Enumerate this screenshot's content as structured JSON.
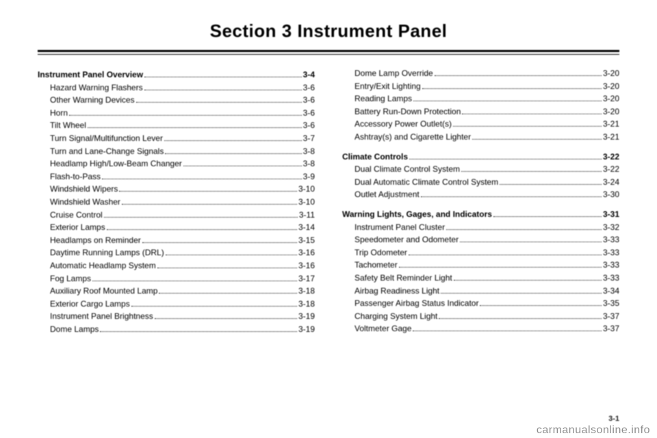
{
  "title": "Section 3    Instrument Panel",
  "footer": "3-1",
  "watermark": "carmanualsonline.info",
  "left": {
    "heading": {
      "label": "Instrument Panel Overview",
      "page": "3-4"
    },
    "items": [
      {
        "label": "Hazard Warning Flashers",
        "page": "3-6"
      },
      {
        "label": "Other Warning Devices",
        "page": "3-6"
      },
      {
        "label": "Horn",
        "page": "3-6"
      },
      {
        "label": "Tilt Wheel",
        "page": "3-6"
      },
      {
        "label": "Turn Signal/Multifunction Lever",
        "page": "3-7"
      },
      {
        "label": "Turn and Lane-Change Signals",
        "page": "3-8"
      },
      {
        "label": "Headlamp High/Low-Beam Changer",
        "page": "3-8"
      },
      {
        "label": "Flash-to-Pass",
        "page": "3-9"
      },
      {
        "label": "Windshield Wipers",
        "page": "3-10"
      },
      {
        "label": "Windshield Washer",
        "page": "3-10"
      },
      {
        "label": "Cruise Control",
        "page": "3-11"
      },
      {
        "label": "Exterior Lamps",
        "page": "3-14"
      },
      {
        "label": "Headlamps on Reminder",
        "page": "3-15"
      },
      {
        "label": "Daytime Running Lamps (DRL)",
        "page": "3-16"
      },
      {
        "label": "Automatic Headlamp System",
        "page": "3-16"
      },
      {
        "label": "Fog Lamps",
        "page": "3-17"
      },
      {
        "label": "Auxiliary Roof Mounted Lamp",
        "page": "3-18"
      },
      {
        "label": "Exterior Cargo Lamps",
        "page": "3-18"
      },
      {
        "label": "Instrument Panel Brightness",
        "page": "3-19"
      },
      {
        "label": "Dome Lamps",
        "page": "3-19"
      }
    ]
  },
  "right": {
    "groups": [
      {
        "heading": null,
        "items": [
          {
            "label": "Dome Lamp Override",
            "page": "3-20"
          },
          {
            "label": "Entry/Exit Lighting",
            "page": "3-20"
          },
          {
            "label": "Reading Lamps",
            "page": "3-20"
          },
          {
            "label": "Battery Run-Down Protection",
            "page": "3-20"
          },
          {
            "label": "Accessory Power Outlet(s)",
            "page": "3-21"
          },
          {
            "label": "Ashtray(s) and Cigarette Lighter",
            "page": "3-21"
          }
        ]
      },
      {
        "heading": {
          "label": "Climate Controls",
          "page": "3-22"
        },
        "items": [
          {
            "label": "Dual Climate Control System",
            "page": "3-22"
          },
          {
            "label": "Dual Automatic Climate Control System",
            "page": "3-24"
          },
          {
            "label": "Outlet Adjustment",
            "page": "3-30"
          }
        ]
      },
      {
        "heading": {
          "label": "Warning Lights, Gages, and Indicators",
          "page": "3-31"
        },
        "items": [
          {
            "label": "Instrument Panel Cluster",
            "page": "3-32"
          },
          {
            "label": "Speedometer and Odometer",
            "page": "3-33"
          },
          {
            "label": "Trip Odometer",
            "page": "3-33"
          },
          {
            "label": "Tachometer",
            "page": "3-33"
          },
          {
            "label": "Safety Belt Reminder Light",
            "page": "3-33"
          },
          {
            "label": "Airbag Readiness Light",
            "page": "3-34"
          },
          {
            "label": "Passenger Airbag Status Indicator",
            "page": "3-35"
          },
          {
            "label": "Charging System Light",
            "page": "3-37"
          },
          {
            "label": "Voltmeter Gage",
            "page": "3-37"
          }
        ]
      }
    ]
  }
}
